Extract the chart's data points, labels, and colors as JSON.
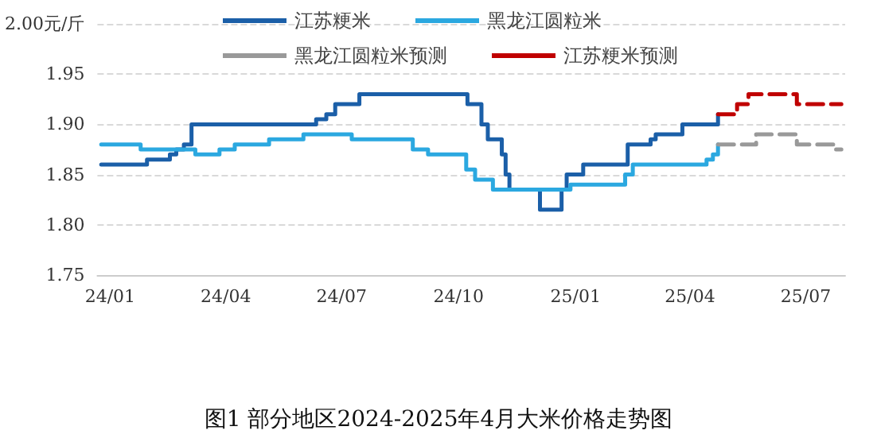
{
  "chart_data": {
    "type": "step",
    "title": "图1 部分地区2024-2025年4月大米价格走势图",
    "xlim": [
      "2023-12-22",
      "2025-08-01"
    ],
    "xticks": [
      {
        "value": "2024-01-01",
        "label": "24/01"
      },
      {
        "value": "2024-04-01",
        "label": "24/04"
      },
      {
        "value": "2024-07-01",
        "label": "24/07"
      },
      {
        "value": "2024-10-01",
        "label": "24/10"
      },
      {
        "value": "2025-01-01",
        "label": "25/01"
      },
      {
        "value": "2025-04-01",
        "label": "25/04"
      },
      {
        "value": "2025-07-01",
        "label": "25/07"
      }
    ],
    "ylim": [
      1.75,
      2.0
    ],
    "yticks": [
      {
        "value": 1.75,
        "label": "1.75"
      },
      {
        "value": 1.8,
        "label": "1.80"
      },
      {
        "value": 1.85,
        "label": "1.85"
      },
      {
        "value": 1.9,
        "label": "1.90"
      },
      {
        "value": 1.95,
        "label": "1.95"
      },
      {
        "value": 2.0,
        "label": "2.00元/斤"
      }
    ],
    "grid": "y",
    "legend": "top",
    "marker": "none",
    "series": [
      {
        "name": "江苏粳米",
        "color": "#1b5fa8",
        "line_style": "solid",
        "x": [
          "2023-12-25",
          "2024-01-30",
          "2024-02-17",
          "2024-02-22",
          "2024-02-28",
          "2024-03-05",
          "2024-06-11",
          "2024-06-19",
          "2024-06-26",
          "2024-07-15",
          "2024-10-08",
          "2024-10-19",
          "2024-10-24",
          "2024-11-04",
          "2024-11-07",
          "2024-11-10",
          "2024-12-04",
          "2024-12-21",
          "2024-12-25",
          "2025-01-07",
          "2025-02-11",
          "2025-03-01",
          "2025-03-05",
          "2025-03-26",
          "2025-04-23"
        ],
        "values": [
          1.86,
          1.865,
          1.87,
          1.875,
          1.88,
          1.9,
          1.905,
          1.91,
          1.92,
          1.93,
          1.92,
          1.9,
          1.885,
          1.87,
          1.85,
          1.835,
          1.815,
          1.835,
          1.85,
          1.86,
          1.88,
          1.885,
          1.89,
          1.9,
          1.91
        ]
      },
      {
        "name": "黑龙江圆粒米",
        "color": "#2ba8e0",
        "line_style": "solid",
        "x": [
          "2023-12-25",
          "2024-01-25",
          "2024-03-08",
          "2024-03-27",
          "2024-04-08",
          "2024-05-05",
          "2024-06-01",
          "2024-07-09",
          "2024-08-26",
          "2024-09-07",
          "2024-10-07",
          "2024-10-14",
          "2024-10-28",
          "2024-12-28",
          "2025-02-09",
          "2025-02-15",
          "2025-04-14",
          "2025-04-19",
          "2025-04-23"
        ],
        "values": [
          1.88,
          1.875,
          1.87,
          1.875,
          1.88,
          1.885,
          1.89,
          1.885,
          1.875,
          1.87,
          1.855,
          1.845,
          1.835,
          1.84,
          1.85,
          1.86,
          1.865,
          1.87,
          1.88
        ]
      },
      {
        "name": "黑龙江圆粒米预测",
        "color": "#999999",
        "line_style": "dashed",
        "x": [
          "2025-04-23",
          "2025-05-23",
          "2025-06-24",
          "2025-07-23",
          "2025-07-29"
        ],
        "values": [
          1.88,
          1.89,
          1.88,
          1.875,
          1.875
        ]
      },
      {
        "name": "江苏粳米预测",
        "color": "#c00000",
        "line_style": "dashed",
        "x": [
          "2025-04-23",
          "2025-05-08",
          "2025-05-17",
          "2025-06-24",
          "2025-07-29"
        ],
        "values": [
          1.91,
          1.92,
          1.93,
          1.92,
          1.92
        ]
      }
    ]
  }
}
